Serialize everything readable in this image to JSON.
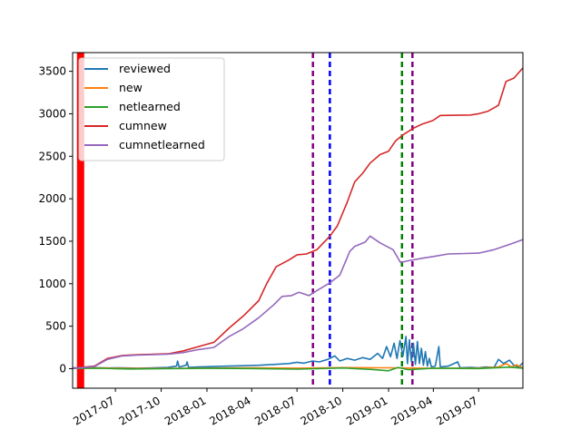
{
  "chart_data": {
    "type": "line",
    "title": "",
    "xlabel": "",
    "ylabel": "",
    "x_axis_type": "date",
    "xlim": [
      "2017-04-06",
      "2019-09-28"
    ],
    "ylim": [
      -230,
      3720
    ],
    "xticks": [
      {
        "date": "2017-07-01",
        "label": "2017-07"
      },
      {
        "date": "2017-10-01",
        "label": "2017-10"
      },
      {
        "date": "2018-01-01",
        "label": "2018-01"
      },
      {
        "date": "2018-04-01",
        "label": "2018-04"
      },
      {
        "date": "2018-07-01",
        "label": "2018-07"
      },
      {
        "date": "2018-10-01",
        "label": "2018-10"
      },
      {
        "date": "2019-01-01",
        "label": "2019-01"
      },
      {
        "date": "2019-04-01",
        "label": "2019-04"
      },
      {
        "date": "2019-07-01",
        "label": "2019-07"
      }
    ],
    "yticks": [
      0,
      500,
      1000,
      1500,
      2000,
      2500,
      3000,
      3500
    ],
    "grid": false,
    "legend_position": "upper-left",
    "vertical_lines": [
      {
        "date": "2017-04-22",
        "color": "#ff0000",
        "style": "solid-band"
      },
      {
        "date": "2018-08-02",
        "color": "#800080",
        "style": "dashed"
      },
      {
        "date": "2018-09-05",
        "color": "#0000ff",
        "style": "dashed"
      },
      {
        "date": "2019-01-28",
        "color": "#008000",
        "style": "dashed"
      },
      {
        "date": "2019-02-18",
        "color": "#800080",
        "style": "dashed"
      }
    ],
    "series": [
      {
        "name": "reviewed",
        "color": "#1f77b4",
        "points": [
          [
            "2017-04-06",
            10
          ],
          [
            "2017-05-15",
            12
          ],
          [
            "2017-06-15",
            8
          ],
          [
            "2017-07-15",
            10
          ],
          [
            "2017-08-15",
            6
          ],
          [
            "2017-09-15",
            10
          ],
          [
            "2017-10-15",
            15
          ],
          [
            "2017-11-01",
            30
          ],
          [
            "2017-11-03",
            90
          ],
          [
            "2017-11-06",
            20
          ],
          [
            "2017-11-20",
            40
          ],
          [
            "2017-11-22",
            80
          ],
          [
            "2017-11-25",
            15
          ],
          [
            "2017-12-15",
            20
          ],
          [
            "2018-01-15",
            25
          ],
          [
            "2018-02-15",
            30
          ],
          [
            "2018-03-15",
            35
          ],
          [
            "2018-04-15",
            40
          ],
          [
            "2018-05-15",
            50
          ],
          [
            "2018-06-15",
            60
          ],
          [
            "2018-07-01",
            75
          ],
          [
            "2018-07-15",
            65
          ],
          [
            "2018-08-01",
            90
          ],
          [
            "2018-08-15",
            80
          ],
          [
            "2018-09-01",
            110
          ],
          [
            "2018-09-15",
            150
          ],
          [
            "2018-09-25",
            90
          ],
          [
            "2018-10-10",
            120
          ],
          [
            "2018-10-25",
            100
          ],
          [
            "2018-11-10",
            130
          ],
          [
            "2018-11-25",
            110
          ],
          [
            "2018-12-10",
            180
          ],
          [
            "2018-12-20",
            120
          ],
          [
            "2018-12-28",
            260
          ],
          [
            "2019-01-05",
            140
          ],
          [
            "2019-01-12",
            300
          ],
          [
            "2019-01-18",
            120
          ],
          [
            "2019-01-24",
            330
          ],
          [
            "2019-01-30",
            150
          ],
          [
            "2019-02-05",
            380
          ],
          [
            "2019-02-08",
            60
          ],
          [
            "2019-02-12",
            340
          ],
          [
            "2019-02-16",
            80
          ],
          [
            "2019-02-20",
            300
          ],
          [
            "2019-02-24",
            50
          ],
          [
            "2019-02-28",
            320
          ],
          [
            "2019-03-04",
            60
          ],
          [
            "2019-03-08",
            240
          ],
          [
            "2019-03-12",
            40
          ],
          [
            "2019-03-16",
            200
          ],
          [
            "2019-03-20",
            30
          ],
          [
            "2019-03-24",
            120
          ],
          [
            "2019-03-28",
            20
          ],
          [
            "2019-04-05",
            30
          ],
          [
            "2019-04-12",
            260
          ],
          [
            "2019-04-15",
            20
          ],
          [
            "2019-05-01",
            30
          ],
          [
            "2019-05-20",
            80
          ],
          [
            "2019-05-25",
            10
          ],
          [
            "2019-06-15",
            15
          ],
          [
            "2019-07-01",
            10
          ],
          [
            "2019-07-15",
            20
          ],
          [
            "2019-08-01",
            15
          ],
          [
            "2019-08-10",
            110
          ],
          [
            "2019-08-20",
            60
          ],
          [
            "2019-09-01",
            100
          ],
          [
            "2019-09-10",
            40
          ],
          [
            "2019-09-20",
            20
          ],
          [
            "2019-09-28",
            70
          ]
        ]
      },
      {
        "name": "new",
        "color": "#ff7f0e",
        "points": [
          [
            "2017-04-06",
            5
          ],
          [
            "2017-06-01",
            8
          ],
          [
            "2017-08-01",
            3
          ],
          [
            "2017-10-01",
            3
          ],
          [
            "2018-01-01",
            6
          ],
          [
            "2018-04-01",
            10
          ],
          [
            "2018-07-01",
            6
          ],
          [
            "2018-10-01",
            12
          ],
          [
            "2019-01-01",
            10
          ],
          [
            "2019-04-01",
            4
          ],
          [
            "2019-07-01",
            6
          ],
          [
            "2019-08-10",
            20
          ],
          [
            "2019-08-25",
            60
          ],
          [
            "2019-09-05",
            20
          ],
          [
            "2019-09-15",
            45
          ],
          [
            "2019-09-28",
            10
          ]
        ]
      },
      {
        "name": "netlearned",
        "color": "#2ca02c",
        "points": [
          [
            "2017-04-06",
            3
          ],
          [
            "2017-06-01",
            5
          ],
          [
            "2017-08-01",
            -4
          ],
          [
            "2017-10-01",
            0
          ],
          [
            "2018-01-01",
            4
          ],
          [
            "2018-04-01",
            2
          ],
          [
            "2018-07-01",
            -6
          ],
          [
            "2018-10-01",
            8
          ],
          [
            "2018-12-01",
            -10
          ],
          [
            "2019-01-01",
            -25
          ],
          [
            "2019-01-20",
            15
          ],
          [
            "2019-02-10",
            -12
          ],
          [
            "2019-04-01",
            5
          ],
          [
            "2019-07-01",
            2
          ],
          [
            "2019-09-01",
            18
          ],
          [
            "2019-09-28",
            6
          ]
        ]
      },
      {
        "name": "cumnew",
        "color": "#d62728",
        "points": [
          [
            "2017-04-06",
            5
          ],
          [
            "2017-05-20",
            30
          ],
          [
            "2017-06-15",
            120
          ],
          [
            "2017-07-15",
            155
          ],
          [
            "2017-08-15",
            165
          ],
          [
            "2017-10-15",
            175
          ],
          [
            "2017-11-15",
            210
          ],
          [
            "2017-12-15",
            260
          ],
          [
            "2018-01-15",
            310
          ],
          [
            "2018-02-15",
            480
          ],
          [
            "2018-03-15",
            620
          ],
          [
            "2018-04-15",
            800
          ],
          [
            "2018-05-01",
            1000
          ],
          [
            "2018-05-20",
            1200
          ],
          [
            "2018-06-15",
            1280
          ],
          [
            "2018-07-01",
            1340
          ],
          [
            "2018-07-20",
            1350
          ],
          [
            "2018-08-10",
            1400
          ],
          [
            "2018-09-05",
            1560
          ],
          [
            "2018-09-20",
            1680
          ],
          [
            "2018-10-10",
            1960
          ],
          [
            "2018-10-25",
            2200
          ],
          [
            "2018-11-10",
            2300
          ],
          [
            "2018-11-25",
            2420
          ],
          [
            "2018-12-15",
            2520
          ],
          [
            "2019-01-01",
            2560
          ],
          [
            "2019-01-15",
            2680
          ],
          [
            "2019-02-01",
            2760
          ],
          [
            "2019-02-20",
            2830
          ],
          [
            "2019-03-10",
            2880
          ],
          [
            "2019-03-31",
            2920
          ],
          [
            "2019-04-15",
            2980
          ],
          [
            "2019-06-15",
            2985
          ],
          [
            "2019-07-01",
            3000
          ],
          [
            "2019-07-20",
            3030
          ],
          [
            "2019-08-10",
            3100
          ],
          [
            "2019-08-25",
            3380
          ],
          [
            "2019-09-10",
            3420
          ],
          [
            "2019-09-28",
            3540
          ]
        ]
      },
      {
        "name": "cumnetlearned",
        "color": "#9467bd",
        "points": [
          [
            "2017-04-06",
            3
          ],
          [
            "2017-05-20",
            25
          ],
          [
            "2017-06-15",
            110
          ],
          [
            "2017-07-15",
            150
          ],
          [
            "2017-08-15",
            160
          ],
          [
            "2017-10-15",
            170
          ],
          [
            "2017-11-15",
            190
          ],
          [
            "2017-12-15",
            225
          ],
          [
            "2018-01-15",
            250
          ],
          [
            "2018-02-15",
            380
          ],
          [
            "2018-03-15",
            470
          ],
          [
            "2018-04-15",
            600
          ],
          [
            "2018-05-15",
            750
          ],
          [
            "2018-06-01",
            850
          ],
          [
            "2018-06-20",
            860
          ],
          [
            "2018-07-05",
            900
          ],
          [
            "2018-07-25",
            860
          ],
          [
            "2018-08-10",
            920
          ],
          [
            "2018-09-05",
            1010
          ],
          [
            "2018-09-25",
            1100
          ],
          [
            "2018-10-15",
            1380
          ],
          [
            "2018-10-25",
            1440
          ],
          [
            "2018-11-15",
            1490
          ],
          [
            "2018-11-25",
            1560
          ],
          [
            "2018-12-15",
            1480
          ],
          [
            "2019-01-10",
            1400
          ],
          [
            "2019-01-25",
            1250
          ],
          [
            "2019-02-10",
            1270
          ],
          [
            "2019-03-10",
            1300
          ],
          [
            "2019-04-01",
            1320
          ],
          [
            "2019-05-01",
            1350
          ],
          [
            "2019-07-01",
            1360
          ],
          [
            "2019-08-01",
            1400
          ],
          [
            "2019-09-05",
            1470
          ],
          [
            "2019-09-28",
            1520
          ]
        ]
      }
    ]
  }
}
